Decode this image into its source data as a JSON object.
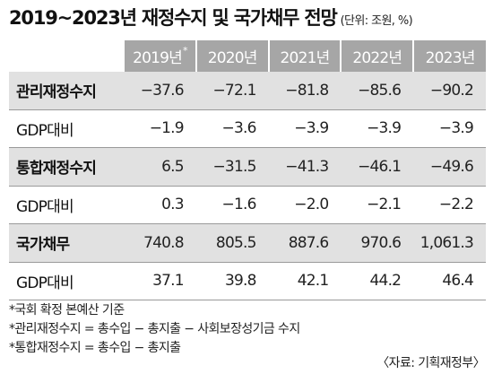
{
  "title": "2019~2023년 재정수지 및 국가채무 전망",
  "unit_note": "(단위: 조원, %)",
  "columns": [
    {
      "label": "2019년",
      "mark": "*"
    },
    {
      "label": "2020년",
      "mark": ""
    },
    {
      "label": "2021년",
      "mark": ""
    },
    {
      "label": "2022년",
      "mark": ""
    },
    {
      "label": "2023년",
      "mark": ""
    }
  ],
  "rows": [
    {
      "label": "관리재정수지",
      "kind": "main",
      "values": [
        "−37.6",
        "−72.1",
        "−81.8",
        "−85.6",
        "−90.2"
      ]
    },
    {
      "label": "GDP대비",
      "kind": "sub",
      "values": [
        "−1.9",
        "−3.6",
        "−3.9",
        "−3.9",
        "−3.9"
      ]
    },
    {
      "label": "통합재정수지",
      "kind": "main",
      "values": [
        "6.5",
        "−31.5",
        "−41.3",
        "−46.1",
        "−49.6"
      ]
    },
    {
      "label": "GDP대비",
      "kind": "sub",
      "values": [
        "0.3",
        "−1.6",
        "−2.0",
        "−2.1",
        "−2.2"
      ]
    },
    {
      "label": "국가채무",
      "kind": "main",
      "values": [
        "740.8",
        "805.5",
        "887.6",
        "970.6",
        "1,061.3"
      ]
    },
    {
      "label": "GDP대비",
      "kind": "sub",
      "values": [
        "37.1",
        "39.8",
        "42.1",
        "44.2",
        "46.4"
      ]
    }
  ],
  "notes": [
    "*국회 확정 본예산 기준",
    "*관리재정수지 = 총수입 − 총지출 − 사회보장성기금 수지",
    "*통합재정수지 = 총수입 − 총지출"
  ],
  "source": "〈자료: 기획재정부〉",
  "colors": {
    "header_bg": "#a6a6a6",
    "main_row_bg": "#e1e1e1",
    "sub_row_bg": "#ffffff"
  }
}
